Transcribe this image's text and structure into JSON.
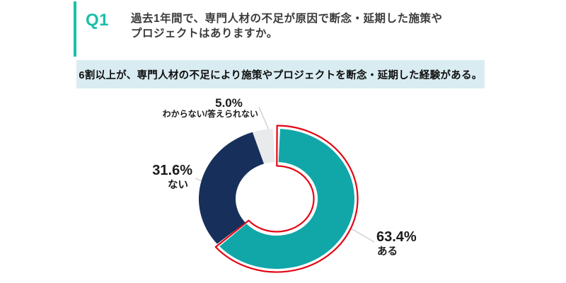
{
  "header": {
    "question_number": "Q1",
    "question_line1": "過去1年間で、専門人材の不足が原因で断念・延期した施策や",
    "question_line2": "プロジェクトはありますか。"
  },
  "summary": {
    "text": "6割以上が、専門人材の不足により施策やプロジェクトを断念・延期した経験がある。"
  },
  "chart_data": {
    "type": "pie",
    "subtype": "donut",
    "title": "過去1年間で、専門人材の不足が原因で断念・延期した施策やプロジェクトはありますか。",
    "annotation": "6割以上が、専門人材の不足により施策やプロジェクトを断念・延期した経験がある。",
    "direction": "clockwise",
    "start_angle_deg": 0,
    "legend_position": "labels-outside",
    "segments": [
      {
        "label": "ある",
        "value": 63.4,
        "display_value": "63.4%",
        "color": "#11A7A9",
        "highlighted": true
      },
      {
        "label": "ない",
        "value": 31.6,
        "display_value": "31.6%",
        "color": "#17305B",
        "highlighted": false
      },
      {
        "label": "わからない/答えられない",
        "value": 5.0,
        "display_value": "5.0%",
        "color": "#E8EAEB",
        "highlighted": false
      }
    ],
    "highlight_outline_color": "#E30613"
  },
  "colors": {
    "accent": "#19BFA8",
    "banner_bg": "#D9ECF2",
    "leader_line": "#C9C9C9"
  }
}
